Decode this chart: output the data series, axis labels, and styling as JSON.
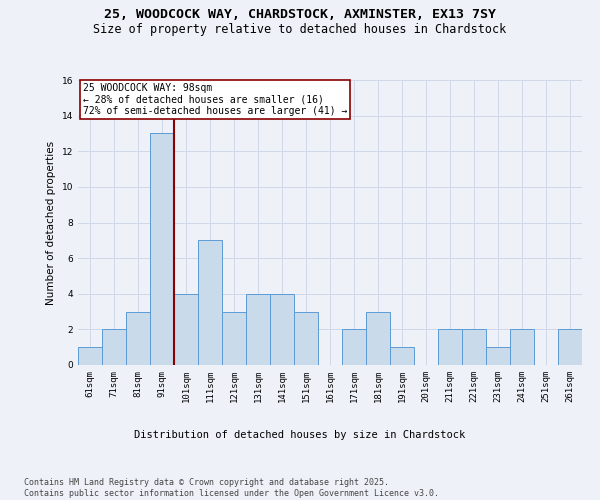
{
  "title_line1": "25, WOODCOCK WAY, CHARDSTOCK, AXMINSTER, EX13 7SY",
  "title_line2": "Size of property relative to detached houses in Chardstock",
  "xlabel": "Distribution of detached houses by size in Chardstock",
  "ylabel": "Number of detached properties",
  "categories": [
    "61sqm",
    "71sqm",
    "81sqm",
    "91sqm",
    "101sqm",
    "111sqm",
    "121sqm",
    "131sqm",
    "141sqm",
    "151sqm",
    "161sqm",
    "171sqm",
    "181sqm",
    "191sqm",
    "201sqm",
    "211sqm",
    "221sqm",
    "231sqm",
    "241sqm",
    "251sqm",
    "261sqm"
  ],
  "values": [
    1,
    2,
    3,
    13,
    4,
    7,
    3,
    4,
    4,
    3,
    0,
    2,
    3,
    1,
    0,
    2,
    2,
    1,
    2,
    0,
    2
  ],
  "bar_color": "#c9daea",
  "bar_edge_color": "#5b9bd5",
  "reference_line_x": 3.5,
  "reference_line_color": "#8b0000",
  "annotation_text": "25 WOODCOCK WAY: 98sqm\n← 28% of detached houses are smaller (16)\n72% of semi-detached houses are larger (41) →",
  "annotation_box_color": "#ffffff",
  "annotation_box_edge_color": "#8b0000",
  "ylim": [
    0,
    16
  ],
  "yticks": [
    0,
    2,
    4,
    6,
    8,
    10,
    12,
    14,
    16
  ],
  "grid_color": "#d0d8e8",
  "background_color": "#eef2f8",
  "footer_text": "Contains HM Land Registry data © Crown copyright and database right 2025.\nContains public sector information licensed under the Open Government Licence v3.0.",
  "title_fontsize": 9.5,
  "subtitle_fontsize": 8.5,
  "axis_label_fontsize": 7.5,
  "tick_fontsize": 6.5,
  "annotation_fontsize": 7,
  "footer_fontsize": 6
}
